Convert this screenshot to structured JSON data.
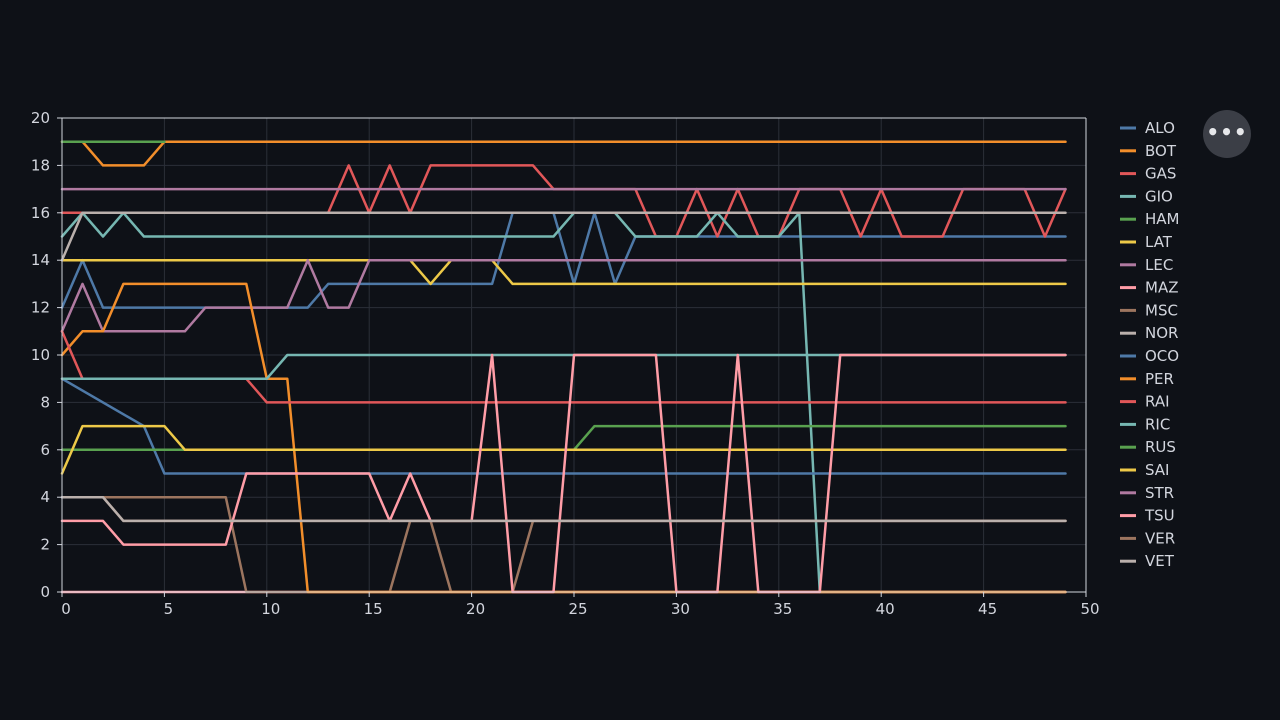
{
  "toolbar": {
    "more_icon": "more-horizontal-icon",
    "more_glyph": "•••"
  },
  "chart_data": {
    "type": "line",
    "title": "",
    "xlabel": "",
    "ylabel": "",
    "xlim": [
      0,
      50
    ],
    "ylim": [
      0,
      20
    ],
    "x_ticks": [
      "0",
      "5",
      "10",
      "15",
      "20",
      "25",
      "30",
      "35",
      "40",
      "45",
      "50"
    ],
    "y_ticks": [
      "0",
      "2",
      "4",
      "6",
      "8",
      "10",
      "12",
      "14",
      "16",
      "18",
      "20"
    ],
    "grid": true,
    "legend_position": "right",
    "background": "#0e1117",
    "grid_color": "#2b2f38",
    "series": [
      {
        "name": "ALO",
        "color": "#4e79a7",
        "points": [
          [
            0,
            12
          ],
          [
            1,
            14
          ],
          [
            2,
            12
          ],
          [
            11,
            12
          ],
          [
            12,
            12
          ],
          [
            13,
            13
          ],
          [
            21,
            13
          ],
          [
            22,
            16
          ],
          [
            24,
            16
          ],
          [
            25,
            13
          ],
          [
            26,
            16
          ],
          [
            27,
            13
          ],
          [
            28,
            15
          ],
          [
            49,
            15
          ]
        ]
      },
      {
        "name": "BOT",
        "color": "#f28e2b",
        "points": [
          [
            0,
            19
          ],
          [
            1,
            19
          ],
          [
            2,
            18
          ],
          [
            4,
            18
          ],
          [
            5,
            19
          ],
          [
            49,
            19
          ]
        ]
      },
      {
        "name": "GAS",
        "color": "#e15759",
        "points": [
          [
            0,
            16
          ],
          [
            12,
            16
          ],
          [
            13,
            16
          ],
          [
            14,
            18
          ],
          [
            15,
            16
          ],
          [
            16,
            18
          ],
          [
            17,
            16
          ],
          [
            18,
            18
          ],
          [
            23,
            18
          ],
          [
            24,
            17
          ],
          [
            28,
            17
          ],
          [
            29,
            15
          ],
          [
            30,
            15
          ],
          [
            31,
            17
          ],
          [
            32,
            15
          ],
          [
            33,
            17
          ],
          [
            34,
            15
          ],
          [
            35,
            15
          ],
          [
            36,
            17
          ],
          [
            38,
            17
          ],
          [
            39,
            15
          ],
          [
            40,
            17
          ],
          [
            41,
            15
          ],
          [
            43,
            15
          ],
          [
            44,
            17
          ],
          [
            47,
            17
          ],
          [
            48,
            15
          ],
          [
            49,
            17
          ]
        ]
      },
      {
        "name": "GIO",
        "color": "#76b7b2",
        "points": [
          [
            0,
            15
          ],
          [
            1,
            16
          ],
          [
            2,
            15
          ],
          [
            3,
            16
          ],
          [
            4,
            15
          ],
          [
            24,
            15
          ],
          [
            25,
            16
          ],
          [
            27,
            16
          ],
          [
            28,
            15
          ],
          [
            31,
            15
          ],
          [
            32,
            16
          ],
          [
            33,
            15
          ],
          [
            35,
            15
          ],
          [
            36,
            16
          ],
          [
            37,
            0
          ],
          [
            49,
            0
          ]
        ]
      },
      {
        "name": "HAM",
        "color": "#59a14f",
        "points": [
          [
            0,
            19
          ],
          [
            5,
            19
          ]
        ]
      },
      {
        "name": "LAT",
        "color": "#edc948",
        "points": [
          [
            0,
            14
          ],
          [
            17,
            14
          ],
          [
            18,
            13
          ],
          [
            19,
            14
          ],
          [
            21,
            14
          ],
          [
            22,
            13
          ],
          [
            49,
            13
          ]
        ]
      },
      {
        "name": "LEC",
        "color": "#b07aa1",
        "points": [
          [
            0,
            11
          ],
          [
            1,
            13
          ],
          [
            2,
            11
          ],
          [
            6,
            11
          ],
          [
            7,
            12
          ],
          [
            11,
            12
          ],
          [
            12,
            14
          ],
          [
            13,
            12
          ],
          [
            14,
            12
          ],
          [
            15,
            14
          ],
          [
            49,
            14
          ]
        ]
      },
      {
        "name": "MAZ",
        "color": "#ff9da7",
        "points": [
          [
            0,
            0
          ],
          [
            49,
            0
          ]
        ]
      },
      {
        "name": "MSC",
        "color": "#9c755f",
        "points": [
          [
            0,
            4
          ],
          [
            8,
            4
          ],
          [
            9,
            0
          ],
          [
            16,
            0
          ],
          [
            17,
            3
          ],
          [
            18,
            3
          ],
          [
            19,
            0
          ],
          [
            22,
            0
          ],
          [
            23,
            3
          ],
          [
            49,
            3
          ]
        ]
      },
      {
        "name": "NOR",
        "color": "#bab0ac",
        "points": [
          [
            0,
            14
          ],
          [
            1,
            16
          ],
          [
            49,
            16
          ]
        ]
      },
      {
        "name": "OCO",
        "color": "#4e79a7",
        "points": [
          [
            0,
            9
          ],
          [
            4,
            7
          ],
          [
            5,
            5
          ],
          [
            49,
            5
          ]
        ]
      },
      {
        "name": "PER",
        "color": "#f28e2b",
        "points": [
          [
            0,
            10
          ],
          [
            1,
            11
          ],
          [
            2,
            11
          ],
          [
            3,
            13
          ],
          [
            9,
            13
          ],
          [
            10,
            9
          ],
          [
            11,
            9
          ],
          [
            12,
            0
          ],
          [
            49,
            0
          ]
        ]
      },
      {
        "name": "RAI",
        "color": "#e15759",
        "points": [
          [
            0,
            11
          ],
          [
            1,
            9
          ],
          [
            9,
            9
          ],
          [
            10,
            8
          ],
          [
            49,
            8
          ]
        ]
      },
      {
        "name": "RIC",
        "color": "#76b7b2",
        "points": [
          [
            0,
            9
          ],
          [
            10,
            9
          ],
          [
            11,
            10
          ],
          [
            49,
            10
          ]
        ]
      },
      {
        "name": "RUS",
        "color": "#59a14f",
        "points": [
          [
            0,
            6
          ],
          [
            25,
            6
          ],
          [
            26,
            7
          ],
          [
            49,
            7
          ]
        ]
      },
      {
        "name": "SAI",
        "color": "#edc948",
        "points": [
          [
            0,
            5
          ],
          [
            1,
            7
          ],
          [
            5,
            7
          ],
          [
            6,
            6
          ],
          [
            49,
            6
          ]
        ]
      },
      {
        "name": "STR",
        "color": "#b07aa1",
        "points": [
          [
            0,
            17
          ],
          [
            49,
            17
          ]
        ]
      },
      {
        "name": "TSU",
        "color": "#ff9da7",
        "points": [
          [
            0,
            3
          ],
          [
            2,
            3
          ],
          [
            3,
            2
          ],
          [
            8,
            2
          ],
          [
            9,
            5
          ],
          [
            15,
            5
          ],
          [
            16,
            3
          ],
          [
            17,
            5
          ],
          [
            18,
            3
          ],
          [
            19,
            3
          ],
          [
            20,
            3
          ],
          [
            21,
            10
          ],
          [
            22,
            0
          ],
          [
            24,
            0
          ],
          [
            25,
            10
          ],
          [
            29,
            10
          ],
          [
            30,
            0
          ],
          [
            32,
            0
          ],
          [
            33,
            10
          ],
          [
            34,
            0
          ],
          [
            37,
            0
          ],
          [
            38,
            10
          ],
          [
            49,
            10
          ]
        ]
      },
      {
        "name": "VER",
        "color": "#9c755f",
        "points": [
          [
            0,
            4
          ],
          [
            2,
            4
          ],
          [
            3,
            3
          ],
          [
            49,
            3
          ]
        ]
      },
      {
        "name": "VET",
        "color": "#bab0ac",
        "points": [
          [
            0,
            4
          ],
          [
            2,
            4
          ],
          [
            3,
            3
          ],
          [
            17,
            3
          ],
          [
            49,
            3
          ]
        ]
      }
    ]
  }
}
